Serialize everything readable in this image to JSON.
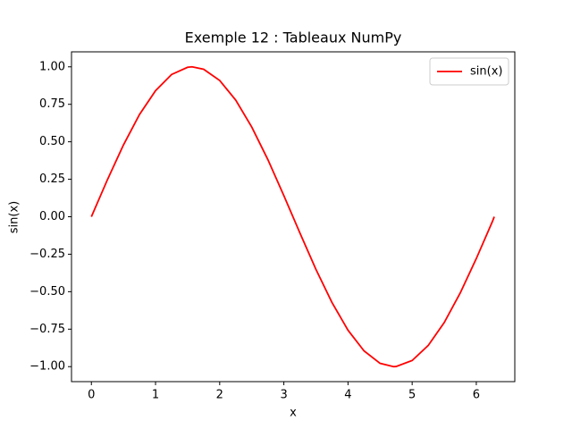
{
  "chart_data": {
    "type": "line",
    "title": "Exemple 12 : Tableaux NumPy",
    "xlabel": "x",
    "ylabel": "sin(x)",
    "x": [
      0,
      0.25,
      0.5,
      0.75,
      1,
      1.25,
      1.5,
      1.57,
      1.75,
      2,
      2.25,
      2.5,
      2.75,
      3,
      3.25,
      3.5,
      3.75,
      4,
      4.25,
      4.5,
      4.71,
      4.75,
      5,
      5.25,
      5.5,
      5.75,
      6,
      6.25,
      6.28
    ],
    "series": [
      {
        "name": "sin(x)",
        "color": "#ff0000",
        "values": [
          0,
          0.247,
          0.479,
          0.682,
          0.841,
          0.949,
          0.997,
          1.0,
          0.984,
          0.909,
          0.778,
          0.598,
          0.382,
          0.141,
          -0.108,
          -0.351,
          -0.572,
          -0.757,
          -0.895,
          -0.978,
          -1.0,
          -0.999,
          -0.959,
          -0.859,
          -0.706,
          -0.508,
          -0.279,
          -0.033,
          0
        ]
      }
    ],
    "xlim": [
      -0.31,
      6.6
    ],
    "ylim": [
      -1.1,
      1.1
    ],
    "xticks": [
      0,
      1,
      2,
      3,
      4,
      5,
      6
    ],
    "yticks": [
      {
        "value": -1,
        "label": "−1.00"
      },
      {
        "value": -0.75,
        "label": "−0.75"
      },
      {
        "value": -0.5,
        "label": "−0.50"
      },
      {
        "value": -0.25,
        "label": "−0.25"
      },
      {
        "value": 0,
        "label": "0.00"
      },
      {
        "value": 0.25,
        "label": "0.25"
      },
      {
        "value": 0.5,
        "label": "0.50"
      },
      {
        "value": 0.75,
        "label": "0.75"
      },
      {
        "value": 1,
        "label": "1.00"
      }
    ],
    "legend": "upper right",
    "grid": false
  }
}
